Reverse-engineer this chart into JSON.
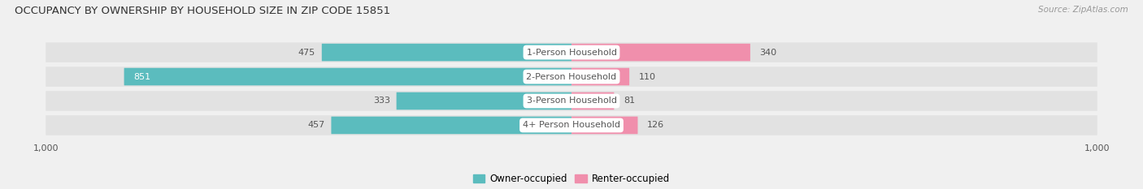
{
  "title": "OCCUPANCY BY OWNERSHIP BY HOUSEHOLD SIZE IN ZIP CODE 15851",
  "source": "Source: ZipAtlas.com",
  "categories": [
    "1-Person Household",
    "2-Person Household",
    "3-Person Household",
    "4+ Person Household"
  ],
  "owner_values": [
    475,
    851,
    333,
    457
  ],
  "renter_values": [
    340,
    110,
    81,
    126
  ],
  "owner_color": "#5bbcbe",
  "renter_color": "#f08fac",
  "label_color_dark": "#555555",
  "label_color_white": "#ffffff",
  "background_color": "#f0f0f0",
  "bar_row_color": "#e2e2e2",
  "bar_inner_bg": "#d8d8d8",
  "xlim": 1000,
  "title_fontsize": 9.5,
  "source_fontsize": 7.5,
  "bar_label_fontsize": 8,
  "category_label_fontsize": 8,
  "axis_label_fontsize": 8,
  "legend_fontsize": 8.5
}
